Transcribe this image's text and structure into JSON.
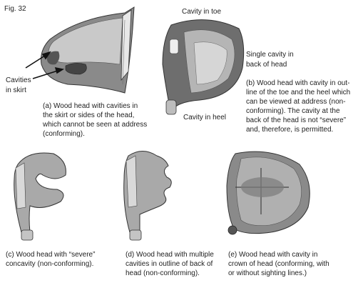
{
  "figure_label": "Fig. 32",
  "labels": {
    "cavity_in_toe": "Cavity in toe",
    "cavity_in_heel": "Cavity in heel",
    "single_cavity_line1": "Single cavity in",
    "single_cavity_line2": "back of head",
    "cavities_skirt_line1": "Cavities",
    "cavities_skirt_line2": "in skirt"
  },
  "captions": {
    "a": [
      "(a) Wood head with cavities in",
      "the skirt or sides of the head,",
      "which cannot be seen at address",
      "(conforming)."
    ],
    "b": [
      "(b) Wood head with cavity in out-",
      "line of the toe and the heel which",
      "can be viewed at address (non-",
      "conforming). The cavity at the",
      "back of the head is not “severe”",
      "and, therefore, is permitted."
    ],
    "c": [
      "(c) Wood head with “severe”",
      "concavity (non-conforming)."
    ],
    "d": [
      "(d) Wood head with multiple",
      "cavities in outline of back of",
      "head (non-conforming)."
    ],
    "e": [
      "(e) Wood head with cavity in",
      "crown of head (conforming, with",
      "or without sighting lines.)"
    ]
  }
}
